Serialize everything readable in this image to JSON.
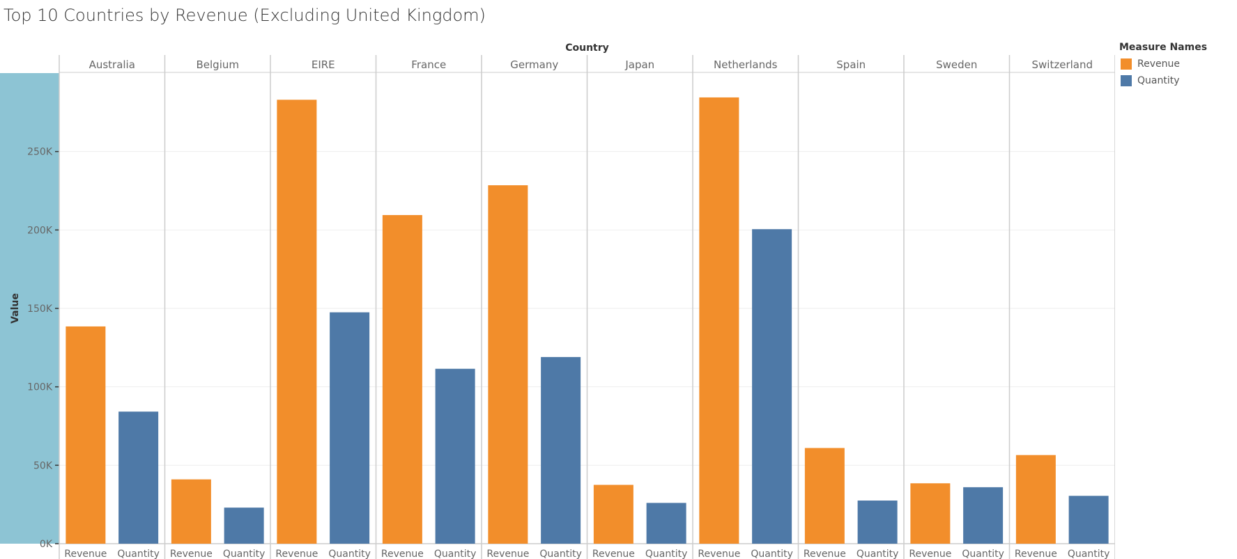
{
  "chart_data": {
    "type": "bar",
    "title": "Top 10 Countries by Revenue (Excluding United Kingdom)",
    "column_header": "Country",
    "ylabel": "Value",
    "ylim": [
      0,
      300000
    ],
    "yticks": [
      0,
      50000,
      100000,
      150000,
      200000,
      250000
    ],
    "ytick_labels": [
      "0K",
      "50K",
      "100K",
      "150K",
      "200K",
      "250K"
    ],
    "categories": [
      "Australia",
      "Belgium",
      "EIRE",
      "France",
      "Germany",
      "Japan",
      "Netherlands",
      "Spain",
      "Sweden",
      "Switzerland"
    ],
    "measures": [
      "Revenue",
      "Quantity"
    ],
    "series": [
      {
        "name": "Revenue",
        "color": "#f28e2b",
        "values": [
          138500,
          41000,
          283000,
          209500,
          228500,
          37500,
          284500,
          61000,
          38500,
          56500
        ]
      },
      {
        "name": "Quantity",
        "color": "#4e79a7",
        "values": [
          84200,
          23000,
          147500,
          111500,
          119000,
          26000,
          200500,
          27500,
          36000,
          30500
        ]
      }
    ],
    "legend": {
      "title": "Measure Names",
      "position": "right"
    }
  }
}
